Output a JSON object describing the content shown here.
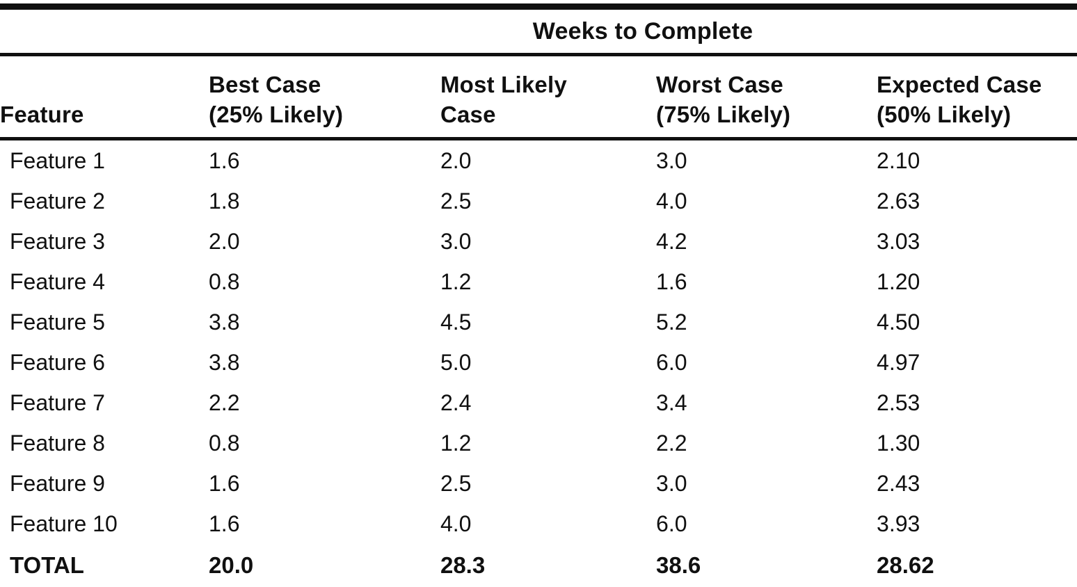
{
  "page": {
    "ink_color": "#101010",
    "paper_color": "#ffffff"
  },
  "table": {
    "spanner_label": "Weeks to Complete",
    "columns": [
      {
        "line1": "",
        "line2": "Feature"
      },
      {
        "line1": "Best Case",
        "line2": "(25% Likely)"
      },
      {
        "line1": "Most Likely",
        "line2": "Case"
      },
      {
        "line1": "Worst Case",
        "line2": "(75% Likely)"
      },
      {
        "line1": "Expected Case",
        "line2": "(50% Likely)"
      }
    ],
    "rows": [
      {
        "feature": "Feature 1",
        "best": "1.6",
        "most_likely": "2.0",
        "worst": "3.0",
        "expected": "2.10"
      },
      {
        "feature": "Feature 2",
        "best": "1.8",
        "most_likely": "2.5",
        "worst": "4.0",
        "expected": "2.63"
      },
      {
        "feature": "Feature 3",
        "best": "2.0",
        "most_likely": "3.0",
        "worst": "4.2",
        "expected": "3.03"
      },
      {
        "feature": "Feature 4",
        "best": "0.8",
        "most_likely": "1.2",
        "worst": "1.6",
        "expected": "1.20"
      },
      {
        "feature": "Feature 5",
        "best": "3.8",
        "most_likely": "4.5",
        "worst": "5.2",
        "expected": "4.50"
      },
      {
        "feature": "Feature 6",
        "best": "3.8",
        "most_likely": "5.0",
        "worst": "6.0",
        "expected": "4.97"
      },
      {
        "feature": "Feature 7",
        "best": "2.2",
        "most_likely": "2.4",
        "worst": "3.4",
        "expected": "2.53"
      },
      {
        "feature": "Feature 8",
        "best": "0.8",
        "most_likely": "1.2",
        "worst": "2.2",
        "expected": "1.30"
      },
      {
        "feature": "Feature 9",
        "best": "1.6",
        "most_likely": "2.5",
        "worst": "3.0",
        "expected": "2.43"
      },
      {
        "feature": "Feature 10",
        "best": "1.6",
        "most_likely": "4.0",
        "worst": "6.0",
        "expected": "3.93"
      }
    ],
    "total": {
      "feature": "TOTAL",
      "best": "20.0",
      "most_likely": "28.3",
      "worst": "38.6",
      "expected": "28.62"
    }
  }
}
